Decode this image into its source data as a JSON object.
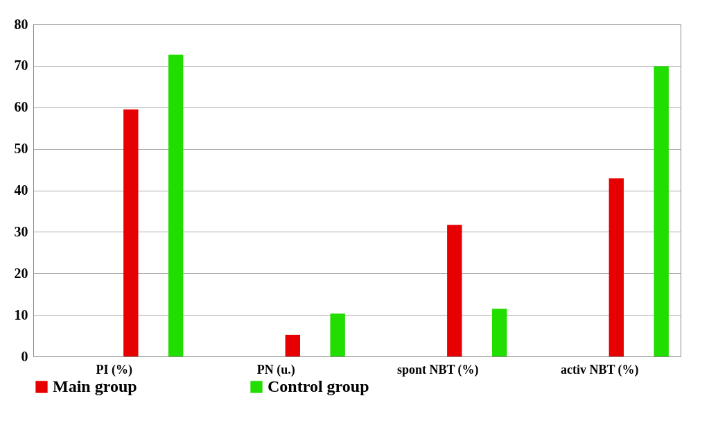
{
  "chart_data": {
    "type": "bar",
    "categories": [
      "PI (%)",
      "PN (u.)",
      "spont NBT (%)",
      "activ NBT (%)"
    ],
    "series": [
      {
        "name": "Main group",
        "color": "#e60000",
        "values": [
          59.5,
          5.2,
          31.7,
          42.9
        ]
      },
      {
        "name": "Control group",
        "color": "#22dd00",
        "values": [
          72.7,
          10.3,
          11.5,
          69.9
        ]
      }
    ],
    "ylim": [
      0,
      80
    ],
    "yticks": [
      0,
      10,
      20,
      30,
      40,
      50,
      60,
      70,
      80
    ],
    "grid": "y",
    "legend": "bottom"
  }
}
